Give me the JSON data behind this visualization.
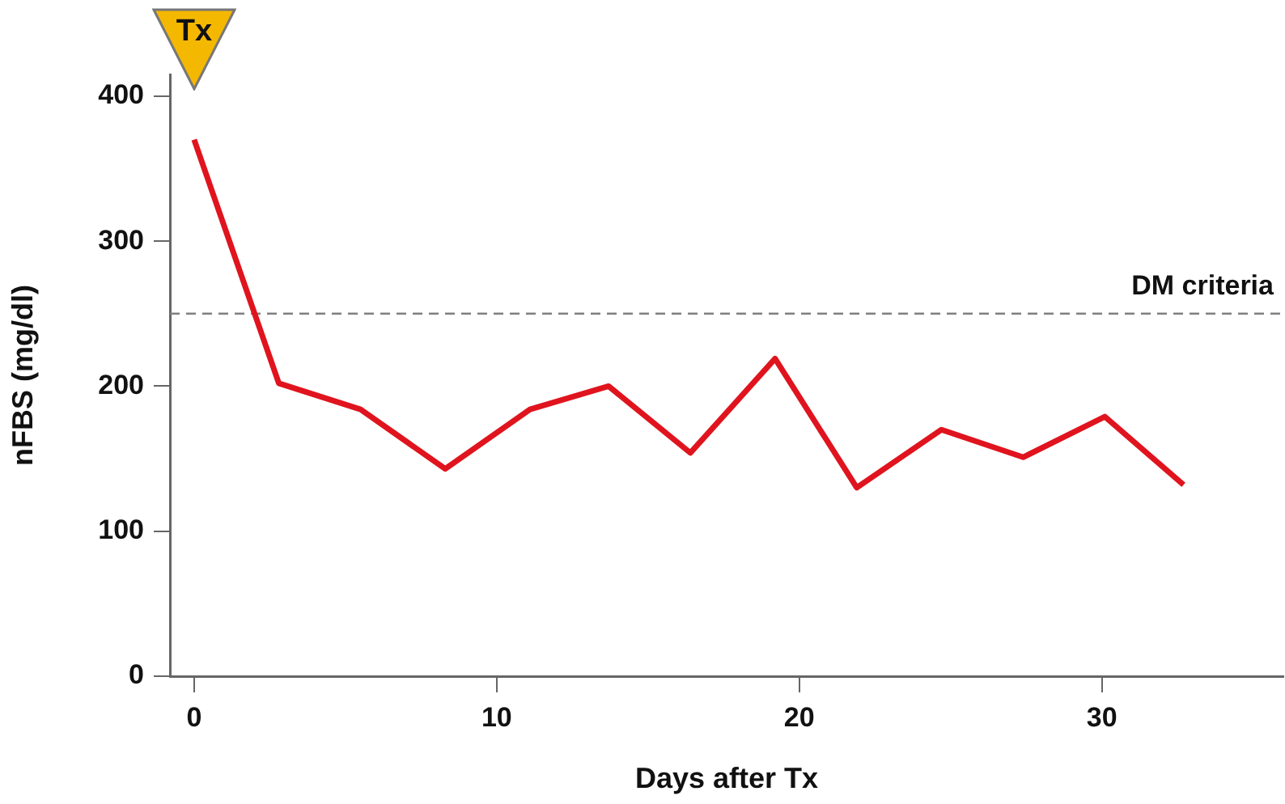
{
  "chart_data": {
    "type": "line",
    "xlabel": "Days after Tx",
    "ylabel": "nFBS (mg/dl)",
    "x": [
      0,
      2.8,
      5.5,
      8.3,
      11.1,
      13.7,
      16.4,
      19.2,
      21.9,
      24.7,
      27.4,
      30.1,
      32.7
    ],
    "series": [
      {
        "color": "#e0141e",
        "values": [
          370,
          202,
          184,
          143,
          184,
          200,
          154,
          219,
          130,
          170,
          151,
          179,
          132
        ]
      }
    ],
    "xlim": [
      -0.8,
      36
    ],
    "xticks": [
      0,
      10,
      20,
      30
    ],
    "ylim": [
      0,
      415
    ],
    "yticks": [
      0,
      100,
      200,
      300,
      400
    ],
    "ref_lines": [
      {
        "axis": "y",
        "value": 250,
        "label": "DM criteria",
        "color": "#808080",
        "line_style": "dashed"
      }
    ],
    "annotations": [
      "Tx"
    ],
    "grid": false,
    "legend": false,
    "marker": "none",
    "line_style": "solid"
  }
}
